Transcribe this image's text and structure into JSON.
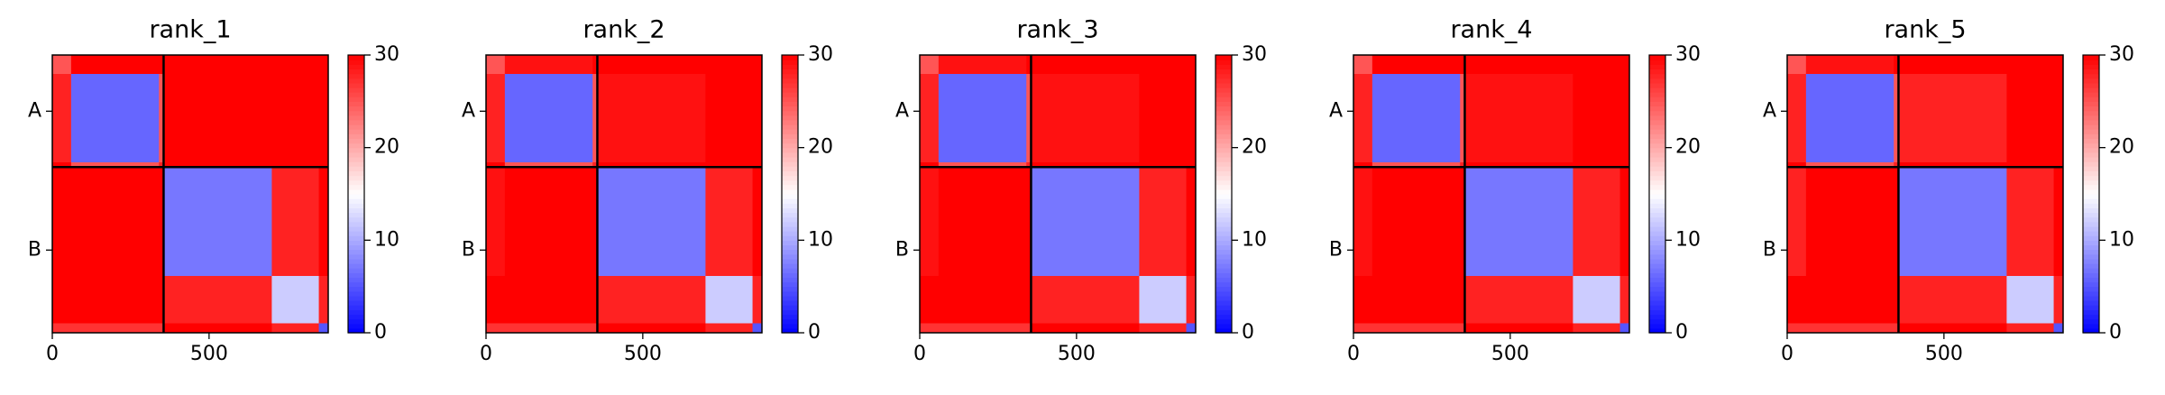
{
  "chart_data": [
    {
      "type": "heatmap",
      "title": "rank_1",
      "x_edges": [
        0,
        60,
        340,
        355,
        700,
        850,
        880
      ],
      "y_edges": [
        0,
        60,
        340,
        355,
        700,
        850,
        880
      ],
      "values": [
        [
          25,
          30,
          30,
          30,
          30,
          30
        ],
        [
          28,
          6,
          25,
          30,
          30,
          30
        ],
        [
          30,
          25,
          28,
          30,
          30,
          30
        ],
        [
          30,
          30,
          30,
          7,
          28,
          30
        ],
        [
          30,
          30,
          30,
          28,
          12,
          28
        ],
        [
          27,
          27,
          27,
          30,
          28,
          5
        ]
      ],
      "xlim": [
        0,
        880
      ],
      "ylim": [
        880,
        0
      ],
      "xticks": [
        0,
        500
      ],
      "yticks": [
        {
          "value": 178,
          "label": "A"
        },
        {
          "value": 618,
          "label": "B"
        }
      ],
      "chain_breaks": [
        355
      ],
      "clim": [
        0,
        30
      ],
      "cticks": [
        0,
        10,
        20,
        30
      ],
      "colors": [
        "#0000ff",
        "#ffffff",
        "#ff0000"
      ]
    },
    {
      "type": "heatmap",
      "title": "rank_2",
      "x_edges": [
        0,
        60,
        340,
        355,
        700,
        850,
        880
      ],
      "y_edges": [
        0,
        60,
        340,
        355,
        700,
        850,
        880
      ],
      "values": [
        [
          25,
          29,
          30,
          30,
          30,
          30
        ],
        [
          28,
          6,
          25,
          29,
          30,
          30
        ],
        [
          30,
          25,
          28,
          30,
          30,
          30
        ],
        [
          29,
          30,
          30,
          7,
          28,
          30
        ],
        [
          30,
          30,
          30,
          28,
          12,
          28
        ],
        [
          27,
          27,
          27,
          30,
          28,
          5
        ]
      ],
      "xlim": [
        0,
        880
      ],
      "ylim": [
        880,
        0
      ],
      "xticks": [
        0,
        500
      ],
      "yticks": [
        {
          "value": 178,
          "label": "A"
        },
        {
          "value": 618,
          "label": "B"
        }
      ],
      "chain_breaks": [
        355
      ],
      "clim": [
        0,
        30
      ],
      "cticks": [
        0,
        10,
        20,
        30
      ],
      "colors": [
        "#0000ff",
        "#ffffff",
        "#ff0000"
      ]
    },
    {
      "type": "heatmap",
      "title": "rank_3",
      "x_edges": [
        0,
        60,
        340,
        355,
        700,
        850,
        880
      ],
      "y_edges": [
        0,
        60,
        340,
        355,
        700,
        850,
        880
      ],
      "values": [
        [
          25,
          29,
          30,
          30,
          30,
          30
        ],
        [
          28,
          6,
          25,
          29,
          30,
          30
        ],
        [
          30,
          25,
          28,
          30,
          30,
          30
        ],
        [
          29,
          30,
          30,
          7,
          28,
          30
        ],
        [
          30,
          30,
          30,
          28,
          12,
          28
        ],
        [
          27,
          27,
          27,
          30,
          28,
          5
        ]
      ],
      "xlim": [
        0,
        880
      ],
      "ylim": [
        880,
        0
      ],
      "xticks": [
        0,
        500
      ],
      "yticks": [
        {
          "value": 178,
          "label": "A"
        },
        {
          "value": 618,
          "label": "B"
        }
      ],
      "chain_breaks": [
        355
      ],
      "clim": [
        0,
        30
      ],
      "cticks": [
        0,
        10,
        20,
        30
      ],
      "colors": [
        "#0000ff",
        "#ffffff",
        "#ff0000"
      ]
    },
    {
      "type": "heatmap",
      "title": "rank_4",
      "x_edges": [
        0,
        60,
        340,
        355,
        700,
        850,
        880
      ],
      "y_edges": [
        0,
        60,
        340,
        355,
        700,
        850,
        880
      ],
      "values": [
        [
          25,
          30,
          30,
          30,
          30,
          30
        ],
        [
          28,
          6,
          25,
          29,
          30,
          30
        ],
        [
          30,
          25,
          28,
          30,
          30,
          30
        ],
        [
          29,
          30,
          30,
          7,
          28,
          30
        ],
        [
          30,
          30,
          30,
          28,
          12,
          28
        ],
        [
          27,
          27,
          27,
          30,
          28,
          5
        ]
      ],
      "xlim": [
        0,
        880
      ],
      "ylim": [
        880,
        0
      ],
      "xticks": [
        0,
        500
      ],
      "yticks": [
        {
          "value": 178,
          "label": "A"
        },
        {
          "value": 618,
          "label": "B"
        }
      ],
      "chain_breaks": [
        355
      ],
      "clim": [
        0,
        30
      ],
      "cticks": [
        0,
        10,
        20,
        30
      ],
      "colors": [
        "#0000ff",
        "#ffffff",
        "#ff0000"
      ]
    },
    {
      "type": "heatmap",
      "title": "rank_5",
      "x_edges": [
        0,
        60,
        340,
        355,
        700,
        850,
        880
      ],
      "y_edges": [
        0,
        60,
        340,
        355,
        700,
        850,
        880
      ],
      "values": [
        [
          25,
          29,
          30,
          30,
          30,
          30
        ],
        [
          28,
          6,
          25,
          28,
          30,
          30
        ],
        [
          30,
          25,
          28,
          30,
          30,
          30
        ],
        [
          28,
          30,
          30,
          7,
          28,
          30
        ],
        [
          30,
          30,
          30,
          28,
          12,
          28
        ],
        [
          27,
          27,
          27,
          30,
          28,
          5
        ]
      ],
      "xlim": [
        0,
        880
      ],
      "ylim": [
        880,
        0
      ],
      "xticks": [
        0,
        500
      ],
      "yticks": [
        {
          "value": 178,
          "label": "A"
        },
        {
          "value": 618,
          "label": "B"
        }
      ],
      "chain_breaks": [
        355
      ],
      "clim": [
        0,
        30
      ],
      "cticks": [
        0,
        10,
        20,
        30
      ],
      "colors": [
        "#0000ff",
        "#ffffff",
        "#ff0000"
      ]
    }
  ]
}
